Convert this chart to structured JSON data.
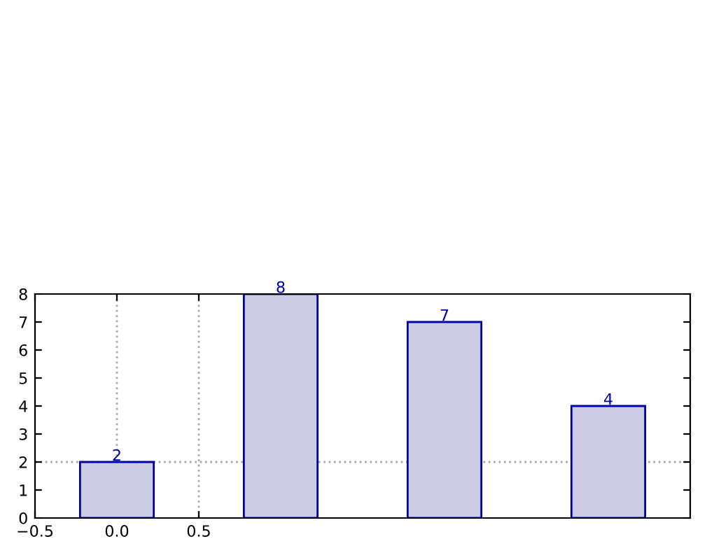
{
  "chart_data": {
    "type": "bar",
    "x": [
      0,
      1,
      2,
      3
    ],
    "values": [
      2,
      8,
      7,
      4
    ],
    "color": "#ccccE5",
    "data_labels": true,
    "xlim": [
      -0.5,
      3.5
    ],
    "xticks": [
      {
        "value": -0.5,
        "label": "−0.5"
      },
      {
        "value": 0,
        "label": "0.0"
      },
      {
        "value": 0.5,
        "label": "0.5"
      }
    ],
    "ylim": [
      0,
      8
    ],
    "yticks": [
      0,
      1,
      2,
      3,
      4,
      5,
      6,
      7,
      8
    ],
    "ref_lines": [
      {
        "axis": "x",
        "value": 0,
        "color": "#aaaaaa",
        "line_style": "dotted"
      },
      {
        "axis": "x",
        "value": 0.5,
        "color": "#aaaaaa",
        "line_style": "dotted"
      },
      {
        "axis": "y",
        "value": 2,
        "color": "#aaaaaa",
        "line_style": "dotted"
      }
    ]
  }
}
